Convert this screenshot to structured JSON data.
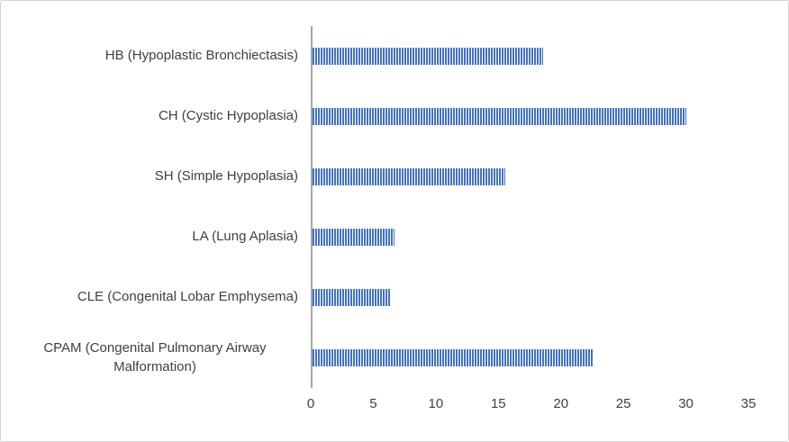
{
  "chart_data": {
    "type": "bar",
    "orientation": "horizontal",
    "title": "",
    "xlabel": "",
    "ylabel": "",
    "categories": [
      "HB (Hypoplastic Bronchiectasis)",
      "CH (Cystic Hypoplasia)",
      "SH (Simple Hypoplasia)",
      "LA (Lung Aplasia)",
      "CLE (Congenital Lobar Emphysema)",
      "CPAM (Congenital Pulmonary Airway Malformation)"
    ],
    "values": [
      18.5,
      30,
      15.5,
      6.6,
      6.3,
      22.5
    ],
    "xlim": [
      0,
      35
    ],
    "x_ticks": [
      "0",
      "5",
      "10",
      "15",
      "20",
      "25",
      "30",
      "35"
    ],
    "grid": false,
    "legend": false,
    "bar_color": "#4472c4",
    "bar_pattern": "vertical-stripes",
    "bar_pattern_gap_color": "#ffffff",
    "axis_line_color": "#a6a6a6",
    "text_color": "#404040"
  }
}
